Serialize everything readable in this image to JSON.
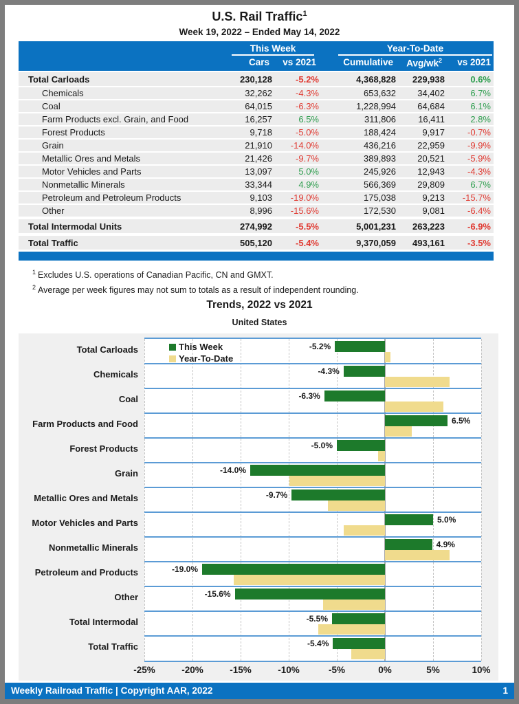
{
  "title": "U.S. Rail Traffic",
  "title_superscript": "1",
  "subtitle": "Week 19, 2022 – Ended May 14, 2022",
  "table": {
    "group_headers": {
      "this_week": "This Week",
      "year_to_date": "Year-To-Date"
    },
    "columns": {
      "cars": "Cars",
      "vs_2021_this_week": "vs 2021",
      "cumulative": "Cumulative",
      "avg_wk": "Avg/wk",
      "avg_wk_superscript": "2",
      "vs_2021_ytd": "vs 2021"
    },
    "rows": [
      {
        "label": "Total Carloads",
        "total": true,
        "cars": "230,128",
        "vs_tw": "-5.2%",
        "cumulative": "4,368,828",
        "avg_wk": "229,938",
        "vs_ytd": "0.6%"
      },
      {
        "label": "Chemicals",
        "total": false,
        "cars": "32,262",
        "vs_tw": "-4.3%",
        "cumulative": "653,632",
        "avg_wk": "34,402",
        "vs_ytd": "6.7%"
      },
      {
        "label": "Coal",
        "total": false,
        "cars": "64,015",
        "vs_tw": "-6.3%",
        "cumulative": "1,228,994",
        "avg_wk": "64,684",
        "vs_ytd": "6.1%"
      },
      {
        "label": "Farm Products excl. Grain, and Food",
        "total": false,
        "cars": "16,257",
        "vs_tw": "6.5%",
        "cumulative": "311,806",
        "avg_wk": "16,411",
        "vs_ytd": "2.8%"
      },
      {
        "label": "Forest Products",
        "total": false,
        "cars": "9,718",
        "vs_tw": "-5.0%",
        "cumulative": "188,424",
        "avg_wk": "9,917",
        "vs_ytd": "-0.7%"
      },
      {
        "label": "Grain",
        "total": false,
        "cars": "21,910",
        "vs_tw": "-14.0%",
        "cumulative": "436,216",
        "avg_wk": "22,959",
        "vs_ytd": "-9.9%"
      },
      {
        "label": "Metallic Ores and Metals",
        "total": false,
        "cars": "21,426",
        "vs_tw": "-9.7%",
        "cumulative": "389,893",
        "avg_wk": "20,521",
        "vs_ytd": "-5.9%"
      },
      {
        "label": "Motor Vehicles and Parts",
        "total": false,
        "cars": "13,097",
        "vs_tw": "5.0%",
        "cumulative": "245,926",
        "avg_wk": "12,943",
        "vs_ytd": "-4.3%"
      },
      {
        "label": "Nonmetallic Minerals",
        "total": false,
        "cars": "33,344",
        "vs_tw": "4.9%",
        "cumulative": "566,369",
        "avg_wk": "29,809",
        "vs_ytd": "6.7%"
      },
      {
        "label": "Petroleum and Petroleum Products",
        "total": false,
        "cars": "9,103",
        "vs_tw": "-19.0%",
        "cumulative": "175,038",
        "avg_wk": "9,213",
        "vs_ytd": "-15.7%"
      },
      {
        "label": "Other",
        "total": false,
        "cars": "8,996",
        "vs_tw": "-15.6%",
        "cumulative": "172,530",
        "avg_wk": "9,081",
        "vs_ytd": "-6.4%"
      },
      {
        "label": "Total Intermodal Units",
        "total": true,
        "gap": true,
        "cars": "274,992",
        "vs_tw": "-5.5%",
        "cumulative": "5,001,231",
        "avg_wk": "263,223",
        "vs_ytd": "-6.9%"
      },
      {
        "label": "Total Traffic",
        "total": true,
        "gap": true,
        "cars": "505,120",
        "vs_tw": "-5.4%",
        "cumulative": "9,370,059",
        "avg_wk": "493,161",
        "vs_ytd": "-3.5%"
      }
    ]
  },
  "footnotes": [
    {
      "marker": "1",
      "text": "Excludes U.S. operations of Canadian Pacific, CN and GMXT."
    },
    {
      "marker": "2",
      "text": "Average per week figures may not sum to totals as a result of independent rounding."
    }
  ],
  "chart_data": {
    "type": "bar",
    "orientation": "horizontal",
    "title": "Trends, 2022 vs 2021",
    "subtitle": "United States",
    "categories": [
      "Total Carloads",
      "Chemicals",
      "Coal",
      "Farm Products and Food",
      "Forest Products",
      "Grain",
      "Metallic Ores and Metals",
      "Motor Vehicles and Parts",
      "Nonmetallic Minerals",
      "Petroleum and Products",
      "Other",
      "Total Intermodal",
      "Total Traffic"
    ],
    "series": [
      {
        "name": "This Week",
        "color": "#1d7a2b",
        "values": [
          -5.2,
          -4.3,
          -6.3,
          6.5,
          -5.0,
          -14.0,
          -9.7,
          5.0,
          4.9,
          -19.0,
          -15.6,
          -5.5,
          -5.4
        ],
        "labels": [
          "-5.2%",
          "-4.3%",
          "-6.3%",
          "6.5%",
          "-5.0%",
          "-14.0%",
          "-9.7%",
          "5.0%",
          "4.9%",
          "-19.0%",
          "-15.6%",
          "-5.5%",
          "-5.4%"
        ]
      },
      {
        "name": "Year-To-Date",
        "color": "#f0db8d",
        "values": [
          0.6,
          6.7,
          6.1,
          2.8,
          -0.7,
          -9.9,
          -5.9,
          -4.3,
          6.7,
          -15.7,
          -6.4,
          -6.9,
          -3.5
        ]
      }
    ],
    "xlim": [
      -25,
      10
    ],
    "tick_step": 5,
    "tick_labels": [
      "-25%",
      "-20%",
      "-15%",
      "-10%",
      "-5%",
      "0%",
      "5%",
      "10%"
    ],
    "xlabel": "",
    "ylabel": "",
    "grid": "vertical-dashed",
    "legend_position": "inside-top-left"
  },
  "footer": {
    "left": "Weekly Railroad Traffic | Copyright AAR, 2022",
    "page": "1"
  },
  "colors": {
    "accent_blue": "#0b72c1",
    "band_line_blue": "#5b9bd5",
    "bar_green": "#1d7a2b",
    "bar_tan": "#f0db8d",
    "negative_red": "#e03a32",
    "positive_green": "#2f9e4f"
  }
}
